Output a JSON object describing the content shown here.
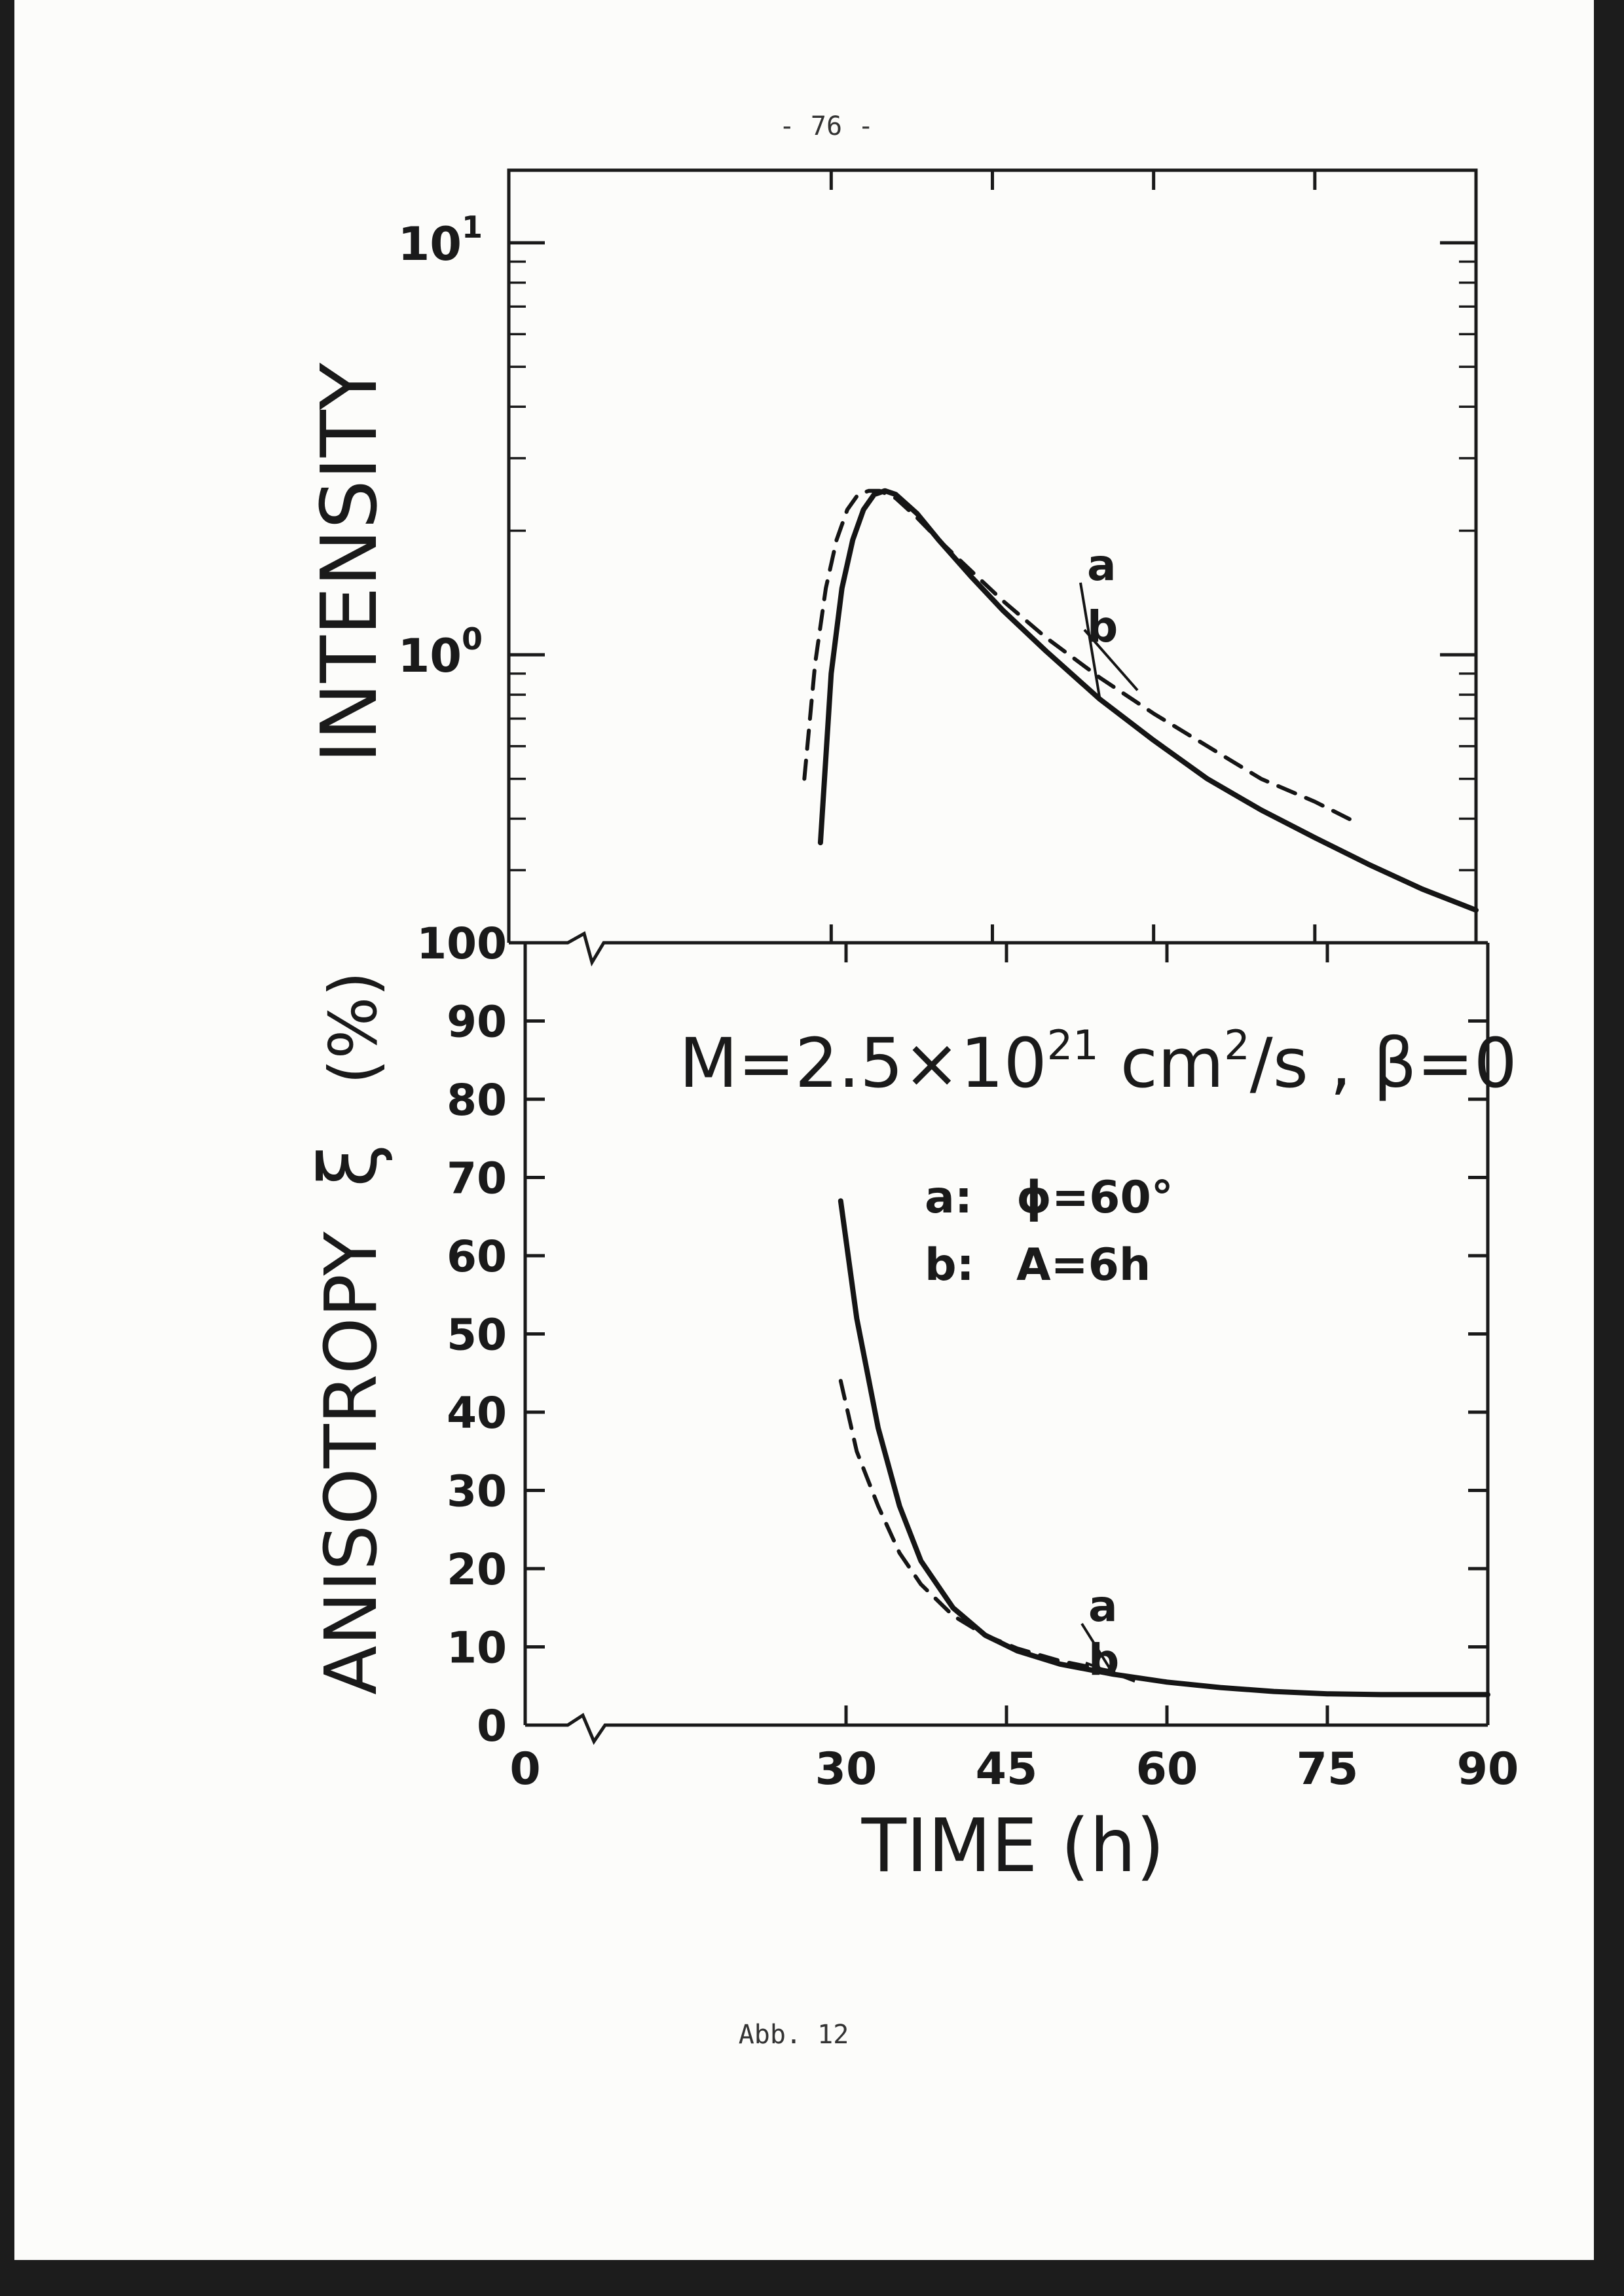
{
  "page": {
    "number": "- 76 -",
    "caption": "Abb. 12"
  },
  "chart_data": [
    {
      "type": "line",
      "panel": "upper",
      "ylabel": "INTENSITY",
      "yscale": "log",
      "ylim": [
        0.2,
        15
      ],
      "xlim": [
        0,
        90
      ],
      "ytick_labels": [
        {
          "base": "10",
          "exp": "1"
        },
        {
          "base": "10",
          "exp": "0"
        }
      ],
      "series": [
        {
          "name": "a",
          "style": "solid",
          "x": [
            29,
            30,
            31,
            32,
            33,
            34,
            35,
            36,
            38,
            40,
            43,
            46,
            50,
            55,
            60,
            65,
            70,
            75,
            80,
            85,
            90
          ],
          "y": [
            0.35,
            0.9,
            1.45,
            1.9,
            2.25,
            2.45,
            2.5,
            2.45,
            2.2,
            1.9,
            1.55,
            1.28,
            1.02,
            0.78,
            0.62,
            0.5,
            0.42,
            0.36,
            0.31,
            0.27,
            0.24
          ]
        },
        {
          "name": "b",
          "style": "dashed",
          "x": [
            27.5,
            28.5,
            29.5,
            30.5,
            31.5,
            32.5,
            33.5,
            34.5,
            36,
            38,
            40,
            43,
            46,
            50,
            55,
            60,
            65,
            70,
            75,
            79
          ],
          "y": [
            0.5,
            0.95,
            1.45,
            1.9,
            2.25,
            2.45,
            2.5,
            2.5,
            2.4,
            2.15,
            1.9,
            1.6,
            1.35,
            1.1,
            0.88,
            0.72,
            0.6,
            0.5,
            0.44,
            0.39
          ]
        }
      ],
      "annotations": [
        "a",
        "b"
      ]
    },
    {
      "type": "line",
      "panel": "lower",
      "ylabel_main": "ANISOTROPY",
      "ylabel_symbol": "ξ",
      "ylabel_unit": "(%)",
      "xlabel": "TIME (h)",
      "xlim": [
        0,
        90
      ],
      "ylim": [
        0,
        100
      ],
      "xticks": [
        0,
        30,
        45,
        60,
        75,
        90
      ],
      "xtick_labels": [
        "0",
        "30",
        "45",
        "60",
        "75",
        "90"
      ],
      "yticks": [
        0,
        10,
        20,
        30,
        40,
        50,
        60,
        70,
        80,
        90,
        100
      ],
      "ytick_labels": [
        "0",
        "10",
        "20",
        "30",
        "40",
        "50",
        "60",
        "70",
        "80",
        "90",
        "100"
      ],
      "series": [
        {
          "name": "a",
          "style": "solid",
          "x": [
            29.5,
            31,
            33,
            35,
            37,
            40,
            43,
            46,
            50,
            55,
            60,
            65,
            70,
            75,
            80,
            85,
            90
          ],
          "y": [
            67,
            52,
            38,
            28,
            21,
            15,
            11.5,
            9.5,
            7.8,
            6.5,
            5.5,
            4.8,
            4.3,
            4.0,
            3.9,
            3.9,
            3.9
          ]
        },
        {
          "name": "b",
          "style": "dashed",
          "x": [
            29.5,
            31,
            33,
            35,
            37,
            40,
            43,
            46,
            50,
            55
          ],
          "y": [
            44,
            35,
            28,
            22,
            18,
            14,
            11.5,
            9.8,
            8.2,
            6.8
          ]
        }
      ],
      "annotations": [
        "a",
        "b"
      ],
      "legend": {
        "title_parts": [
          "M=2.5×10",
          "21",
          " cm",
          "2",
          "/s , β=0"
        ],
        "items": [
          {
            "key": "a:",
            "text": "ϕ=60°"
          },
          {
            "key": "b:",
            "text": "A=6h"
          }
        ]
      }
    }
  ]
}
